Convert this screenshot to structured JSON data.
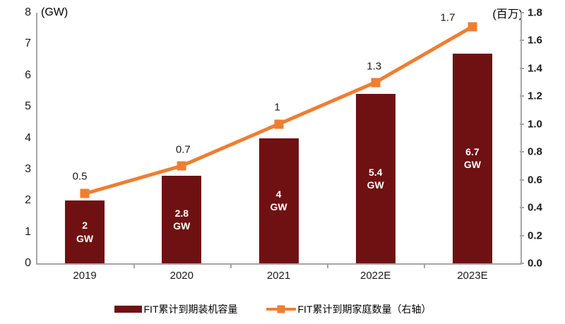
{
  "chart_data": {
    "type": "bar+line",
    "categories": [
      "2019",
      "2020",
      "2021",
      "2022E",
      "2023E"
    ],
    "series": [
      {
        "name": "FIT累计到期装机容量",
        "type": "bar",
        "axis": "left",
        "values": [
          2,
          2.8,
          4,
          5.4,
          6.7
        ],
        "bar_value_labels": [
          "2",
          "2.8",
          "4",
          "5.4",
          "6.7"
        ],
        "bar_unit_label": "GW",
        "color": "#6F1112"
      },
      {
        "name": "FIT累计到期家庭数量（右轴）",
        "type": "line",
        "axis": "right",
        "values": [
          0.5,
          0.7,
          1,
          1.3,
          1.7
        ],
        "point_labels": [
          "0.5",
          "0.7",
          "1",
          "1.3",
          "1.7"
        ],
        "color": "#EE7E32"
      }
    ],
    "left_axis": {
      "title": "(GW)",
      "min": 0,
      "max": 8,
      "step": 1,
      "tick_labels": [
        "0",
        "1",
        "2",
        "3",
        "4",
        "5",
        "6",
        "7",
        "8"
      ]
    },
    "right_axis": {
      "title": "(百万)",
      "min": 0,
      "max": 1.8,
      "step": 0.2,
      "tick_labels": [
        "0.0",
        "0.2",
        "0.4",
        "0.6",
        "0.8",
        "1.0",
        "1.2",
        "1.4",
        "1.6",
        "1.8"
      ]
    },
    "grid": false,
    "legend_position": "bottom-center",
    "colors": {
      "bar": "#6F1112",
      "line": "#EE7E32",
      "axis_line": "#A6A6A6",
      "text": "#1A1A1A",
      "bar_label_text": "#FFFFFF",
      "background": "#FFFFFF"
    }
  },
  "legend": {
    "items": [
      {
        "label": "FIT累计到期装机容量",
        "swatch": "bar",
        "color": "#6F1112"
      },
      {
        "label": "FIT累计到期家庭数量（右轴）",
        "swatch": "line-marker",
        "color": "#EE7E32"
      }
    ]
  }
}
